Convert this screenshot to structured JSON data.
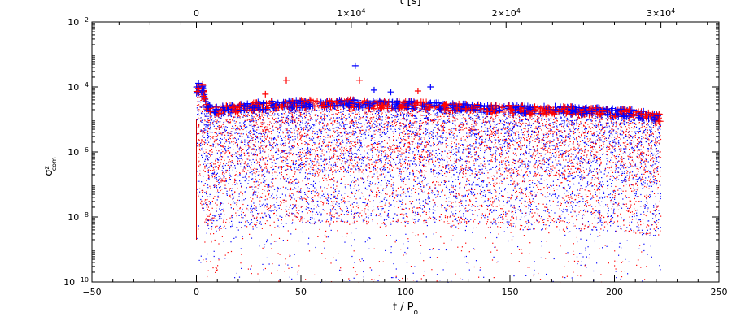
{
  "chart_data": {
    "type": "scatter",
    "title": "",
    "xlabel": "t / P",
    "xlabel_sub": "o",
    "ylabel": "σ",
    "ylabel_sup": "z",
    "ylabel_sub": "com",
    "x2label": "t [s]",
    "xlim": [
      -50,
      250
    ],
    "ylim": [
      1e-10,
      0.01
    ],
    "yscale": "log",
    "x2lim": [
      -6.75,
      33.75
    ],
    "x2_scale_note_units": "ticks in units of 10^3 s",
    "x_ticks": [
      -50,
      0,
      50,
      100,
      150,
      200,
      250
    ],
    "x_tick_labels": [
      "−50",
      "0",
      "50",
      "100",
      "150",
      "200",
      "250"
    ],
    "y_ticks": [
      1e-10,
      1e-08,
      1e-06,
      0.0001,
      0.01
    ],
    "y_tick_labels": [
      {
        "base": "10",
        "exp": "−10"
      },
      {
        "base": "10",
        "exp": "−8"
      },
      {
        "base": "10",
        "exp": "−6"
      },
      {
        "base": "10",
        "exp": "−4"
      },
      {
        "base": "10",
        "exp": "−2"
      }
    ],
    "x2_ticks": [
      0,
      10000,
      20000,
      30000
    ],
    "x2_tick_labels": [
      {
        "text": "0"
      },
      {
        "text": "1×10",
        "exp": "4"
      },
      {
        "text": "2×10",
        "exp": "4"
      },
      {
        "text": "3×10",
        "exp": "4"
      }
    ],
    "grid": false,
    "series": [
      {
        "color": "#0000ff",
        "marker": "dot"
      },
      {
        "color": "#ff0000",
        "marker": "dot"
      },
      {
        "color": "#0000ff",
        "marker": "plus"
      },
      {
        "color": "#ff0000",
        "marker": "plus"
      }
    ],
    "data_range": {
      "x": [
        0,
        222
      ]
    },
    "envelope_upper": [
      [
        0,
        0.0001
      ],
      [
        1,
        0.00013
      ],
      [
        3,
        0.00012
      ],
      [
        5,
        3e-05
      ],
      [
        10,
        2.5e-05
      ],
      [
        20,
        3e-05
      ],
      [
        30,
        3.5e-05
      ],
      [
        40,
        3.8e-05
      ],
      [
        50,
        4e-05
      ],
      [
        60,
        4e-05
      ],
      [
        70,
        4.2e-05
      ],
      [
        80,
        4e-05
      ],
      [
        90,
        3.8e-05
      ],
      [
        100,
        3.8e-05
      ],
      [
        110,
        3.5e-05
      ],
      [
        120,
        3.2e-05
      ],
      [
        130,
        3e-05
      ],
      [
        140,
        2.8e-05
      ],
      [
        150,
        2.8e-05
      ],
      [
        160,
        2.6e-05
      ],
      [
        170,
        2.6e-05
      ],
      [
        180,
        2.5e-05
      ],
      [
        190,
        2.4e-05
      ],
      [
        200,
        2.2e-05
      ],
      [
        210,
        2e-05
      ],
      [
        222,
        1.5e-05
      ]
    ],
    "outliers_blue": [
      [
        76,
        0.00045
      ],
      [
        112,
        0.0001
      ],
      [
        85,
        8e-05
      ],
      [
        93,
        7e-05
      ],
      [
        1,
        0.00013
      ]
    ],
    "outliers_red": [
      [
        43,
        0.00016
      ],
      [
        78,
        0.00016
      ],
      [
        106,
        7.5e-05
      ],
      [
        33,
        6e-05
      ],
      [
        3,
        0.00012
      ]
    ],
    "lower_floor": 1e-10,
    "dense_band": [
      1e-08,
      1e-05
    ]
  }
}
